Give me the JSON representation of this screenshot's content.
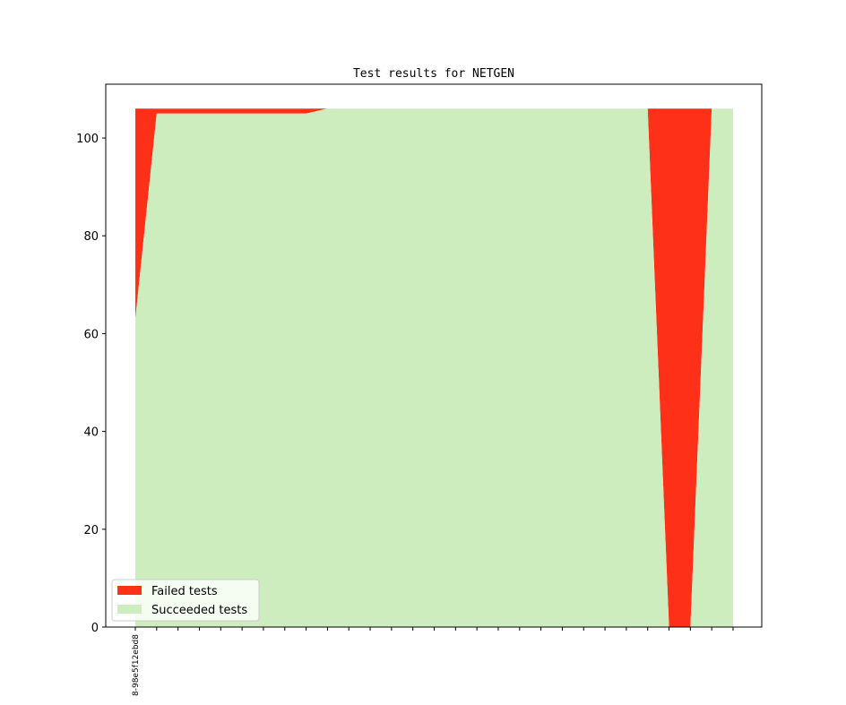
{
  "chart_data": {
    "type": "area",
    "title": "Test results for NETGEN",
    "xlabel": "",
    "ylabel": "",
    "ylim": [
      0,
      111
    ],
    "y_ticks": [
      0,
      20,
      40,
      60,
      80,
      100
    ],
    "x_tick_labels": [
      "8-98e5f12ebd8"
    ],
    "n_points": 29,
    "legend_position": "lower-left",
    "series": [
      {
        "name": "Failed tests",
        "color": "#ff3018",
        "values": [
          43,
          1,
          1,
          1,
          1,
          1,
          1,
          1,
          1,
          0,
          0,
          0,
          0,
          0,
          0,
          0,
          0,
          0,
          0,
          0,
          0,
          0,
          0,
          0,
          0,
          106,
          106,
          0,
          0
        ]
      },
      {
        "name": "Succeeded tests",
        "color": "#ceedbf",
        "values": [
          63,
          105,
          105,
          105,
          105,
          105,
          105,
          105,
          105,
          106,
          106,
          106,
          106,
          106,
          106,
          106,
          106,
          106,
          106,
          106,
          106,
          106,
          106,
          106,
          106,
          0,
          0,
          106,
          106
        ]
      }
    ]
  }
}
